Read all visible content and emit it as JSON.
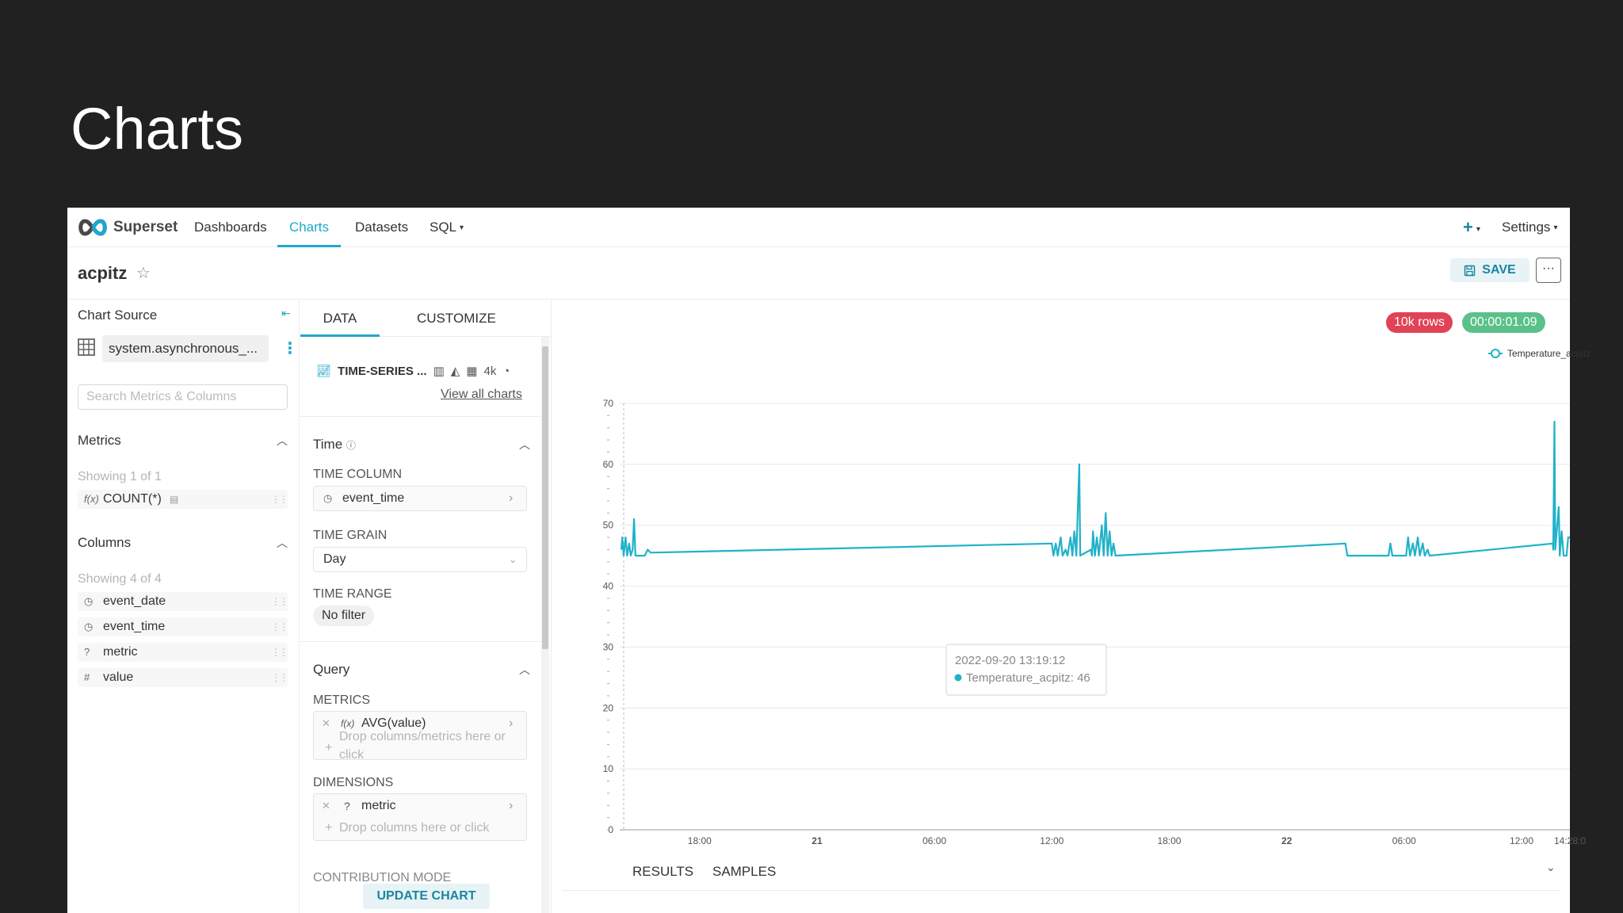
{
  "slide": {
    "title": "Charts"
  },
  "navbar": {
    "brand": "Superset",
    "items": [
      {
        "label": "Dashboards",
        "active": false
      },
      {
        "label": "Charts",
        "active": true
      },
      {
        "label": "Datasets",
        "active": false
      },
      {
        "label": "SQL",
        "active": false
      }
    ],
    "settings": "Settings"
  },
  "header": {
    "chart_name": "acpitz",
    "save_label": "SAVE",
    "more_label": "···"
  },
  "left_panel": {
    "title": "Chart Source",
    "dataset": "system.asynchronous_...",
    "search_placeholder": "Search Metrics & Columns",
    "metrics_header": "Metrics",
    "metrics_showing": "Showing 1 of 1",
    "metrics": [
      {
        "icon": "f(x)",
        "name": "COUNT(*)"
      }
    ],
    "columns_header": "Columns",
    "columns_showing": "Showing 4 of 4",
    "columns": [
      {
        "icon": "clock-icon",
        "name": "event_date"
      },
      {
        "icon": "clock-icon",
        "name": "event_time"
      },
      {
        "icon": "?",
        "name": "metric"
      },
      {
        "icon": "#",
        "name": "value"
      }
    ]
  },
  "middle_panel": {
    "tabs": [
      "DATA",
      "CUSTOMIZE"
    ],
    "viz_type": "TIME-SERIES ...",
    "viz_4k": "4k",
    "view_all": "View all charts",
    "time_header": "Time",
    "time_column_label": "TIME COLUMN",
    "time_column_value": "event_time",
    "time_grain_label": "TIME GRAIN",
    "time_grain_value": "Day",
    "time_range_label": "TIME RANGE",
    "time_range_value": "No filter",
    "query_header": "Query",
    "metrics_label": "METRICS",
    "metric_value": "AVG(value)",
    "metrics_drop_hint": "Drop columns/metrics here or click",
    "dimensions_label": "DIMENSIONS",
    "dimension_value": "metric",
    "dimensions_drop_hint": "Drop columns here or click",
    "contribution_label": "CONTRIBUTION MODE",
    "update_button": "UPDATE CHART"
  },
  "right_panel": {
    "rows_badge": "10k rows",
    "time_badge": "00:00:01.09",
    "colors": {
      "rows_badge": "#e04355",
      "time_badge": "#5ac189",
      "series": "#20b2c9"
    },
    "bottom_tabs": [
      "RESULTS",
      "SAMPLES"
    ]
  },
  "chart_data": {
    "type": "line",
    "series_name": "Temperature_acpitz",
    "ylim": [
      0,
      70
    ],
    "y_ticks": [
      0,
      10,
      20,
      30,
      40,
      50,
      60,
      70
    ],
    "x_tick_labels": [
      "18:00",
      "21",
      "06:00",
      "12:00",
      "18:00",
      "22",
      "06:00",
      "12:00",
      "14:28:0"
    ],
    "x_ticks_bold": [
      false,
      true,
      false,
      false,
      false,
      true,
      false,
      false,
      false
    ],
    "x_domain_hours": [
      14.0,
      62.47
    ],
    "x_tick_hours": [
      18,
      24,
      30,
      36,
      42,
      48,
      54,
      60,
      62.47
    ],
    "legend": "top-right",
    "grid": true,
    "tooltip": {
      "title": "2022-09-20 13:19:12",
      "series": "Temperature_acpitz",
      "value": "46"
    },
    "points": [
      [
        14.0,
        46
      ],
      [
        14.05,
        48
      ],
      [
        14.12,
        45
      ],
      [
        14.22,
        48
      ],
      [
        14.3,
        45
      ],
      [
        14.4,
        47
      ],
      [
        14.48,
        45
      ],
      [
        14.58,
        46
      ],
      [
        14.65,
        51
      ],
      [
        14.72,
        45
      ],
      [
        15.0,
        45
      ],
      [
        15.2,
        45
      ],
      [
        15.35,
        46
      ],
      [
        15.5,
        45.5
      ],
      [
        36.0,
        47
      ],
      [
        36.08,
        45
      ],
      [
        36.2,
        47
      ],
      [
        36.3,
        45
      ],
      [
        36.45,
        48
      ],
      [
        36.55,
        45
      ],
      [
        36.7,
        46
      ],
      [
        36.8,
        45
      ],
      [
        36.95,
        48
      ],
      [
        37.05,
        45
      ],
      [
        37.15,
        49
      ],
      [
        37.25,
        45
      ],
      [
        37.4,
        60
      ],
      [
        37.45,
        45
      ],
      [
        38.0,
        46
      ],
      [
        38.05,
        45
      ],
      [
        38.1,
        49
      ],
      [
        38.2,
        45
      ],
      [
        38.3,
        48
      ],
      [
        38.4,
        45
      ],
      [
        38.55,
        50
      ],
      [
        38.65,
        45
      ],
      [
        38.75,
        52
      ],
      [
        38.85,
        45
      ],
      [
        38.95,
        49
      ],
      [
        39.05,
        45
      ],
      [
        39.15,
        47
      ],
      [
        39.25,
        45
      ],
      [
        51.0,
        47
      ],
      [
        51.1,
        45
      ],
      [
        51.2,
        45
      ],
      [
        53.2,
        45
      ],
      [
        53.3,
        47
      ],
      [
        53.4,
        45
      ],
      [
        54.1,
        45
      ],
      [
        54.2,
        48
      ],
      [
        54.3,
        45
      ],
      [
        54.45,
        47
      ],
      [
        54.55,
        45
      ],
      [
        54.7,
        48
      ],
      [
        54.8,
        45
      ],
      [
        54.95,
        47
      ],
      [
        55.05,
        45
      ],
      [
        55.2,
        46
      ],
      [
        55.3,
        45
      ],
      [
        61.6,
        47
      ],
      [
        61.62,
        46
      ],
      [
        61.68,
        67
      ],
      [
        61.72,
        46
      ],
      [
        61.9,
        53
      ],
      [
        61.95,
        45
      ],
      [
        62.05,
        49
      ],
      [
        62.15,
        45
      ],
      [
        62.3,
        45
      ],
      [
        62.38,
        48
      ],
      [
        62.47,
        48
      ]
    ]
  }
}
